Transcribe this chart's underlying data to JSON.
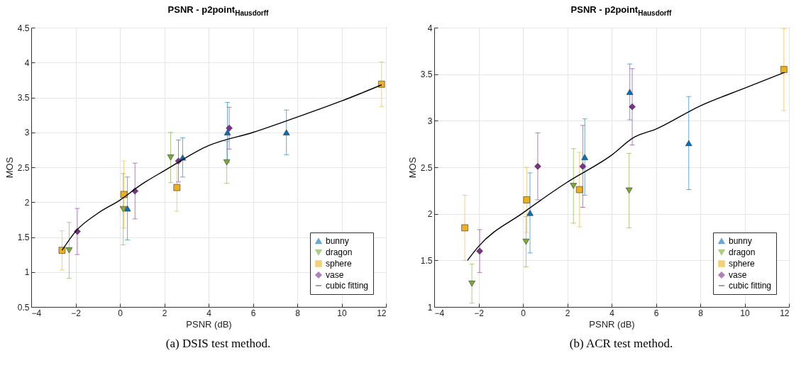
{
  "chart_data": [
    {
      "type": "scatter",
      "title": "PSNR - p2point$_{Hausdorff}$",
      "xlabel": "PSNR (dB)",
      "ylabel": "MOS",
      "xlim": [
        -4,
        12
      ],
      "xticks": [
        -4,
        -2,
        0,
        2,
        4,
        6,
        8,
        10,
        12
      ],
      "ylim": [
        0.5,
        4.5
      ],
      "yticks": [
        0.5,
        1,
        1.5,
        2,
        2.5,
        3,
        3.5,
        4,
        4.5
      ],
      "grid": true,
      "legend": "bottom right",
      "annotations": [
        "(a) DSIS test method."
      ],
      "series": [
        {
          "name": "bunny",
          "color": "#0072bd",
          "marker": "triangle",
          "x": [
            0.34,
            2.83,
            4.85,
            7.51
          ],
          "values": [
            1.91,
            2.64,
            3.0,
            3.0
          ],
          "errors": [
            0.45,
            0.28,
            0.43,
            0.32
          ]
        },
        {
          "name": "dragon",
          "color": "#77ac30",
          "marker": "triangle-down",
          "x": [
            -2.29,
            0.15,
            2.29,
            4.82
          ],
          "values": [
            1.31,
            1.9,
            2.64,
            2.57
          ],
          "errors": [
            0.4,
            0.51,
            0.36,
            0.3
          ]
        },
        {
          "name": "sphere",
          "color": "#edb120",
          "marker": "square",
          "x": [
            -2.61,
            0.18,
            2.57,
            11.8
          ],
          "values": [
            1.31,
            2.11,
            2.21,
            3.69
          ],
          "errors": [
            0.28,
            0.48,
            0.34,
            0.32
          ]
        },
        {
          "name": "vase",
          "color": "#7e2f8e",
          "marker": "diamond",
          "x": [
            -1.92,
            0.68,
            2.64,
            4.93
          ],
          "values": [
            1.58,
            2.16,
            2.59,
            3.06
          ],
          "errors": [
            0.33,
            0.4,
            0.3,
            0.3
          ]
        },
        {
          "name": "cubic fitting",
          "type": "line",
          "color": "#000000",
          "marker": "none",
          "line_style": "solid",
          "x": [
            -2.61,
            -2,
            -1,
            0,
            1,
            2,
            4,
            6,
            8,
            10,
            11.8
          ],
          "values": [
            1.31,
            1.58,
            1.84,
            2.03,
            2.26,
            2.45,
            2.81,
            3.0,
            3.22,
            3.45,
            3.68
          ]
        }
      ]
    },
    {
      "type": "scatter",
      "title": "PSNR - p2point$_{Hausdorff}$",
      "xlabel": "PSNR (dB)",
      "ylabel": "MOS",
      "xlim": [
        -4,
        12
      ],
      "xticks": [
        -4,
        -2,
        0,
        2,
        4,
        6,
        8,
        10,
        12
      ],
      "ylim": [
        1,
        4
      ],
      "yticks": [
        1,
        1.5,
        2,
        2.5,
        3,
        3.5,
        4
      ],
      "grid": true,
      "legend": "bottom right",
      "annotations": [
        "(b) ACR test method."
      ],
      "series": [
        {
          "name": "bunny",
          "color": "#0072bd",
          "marker": "triangle",
          "x": [
            0.32,
            2.79,
            4.82,
            7.48
          ],
          "values": [
            2.01,
            2.61,
            3.31,
            2.76
          ],
          "errors": [
            0.43,
            0.41,
            0.3,
            0.5
          ]
        },
        {
          "name": "dragon",
          "color": "#77ac30",
          "marker": "triangle-down",
          "x": [
            -2.3,
            0.14,
            2.28,
            4.79
          ],
          "values": [
            1.25,
            1.7,
            2.3,
            2.25
          ],
          "errors": [
            0.21,
            0.27,
            0.4,
            0.4
          ]
        },
        {
          "name": "sphere",
          "color": "#edb120",
          "marker": "square",
          "x": [
            -2.62,
            0.17,
            2.55,
            11.77
          ],
          "values": [
            1.85,
            2.15,
            2.26,
            3.55
          ],
          "errors": [
            0.35,
            0.35,
            0.4,
            0.44
          ]
        },
        {
          "name": "vase",
          "color": "#7e2f8e",
          "marker": "diamond",
          "x": [
            -1.95,
            0.67,
            2.7,
            4.93
          ],
          "values": [
            1.6,
            2.51,
            2.51,
            3.15
          ],
          "errors": [
            0.23,
            0.36,
            0.44,
            0.41
          ]
        },
        {
          "name": "cubic fitting",
          "type": "line",
          "color": "#000000",
          "marker": "none",
          "line_style": "solid",
          "x": [
            -2.5,
            -2,
            0,
            2,
            4,
            5,
            6,
            8,
            10,
            11.8
          ],
          "values": [
            1.5,
            1.65,
            2.01,
            2.34,
            2.63,
            2.82,
            2.91,
            3.16,
            3.35,
            3.52
          ]
        }
      ]
    }
  ]
}
